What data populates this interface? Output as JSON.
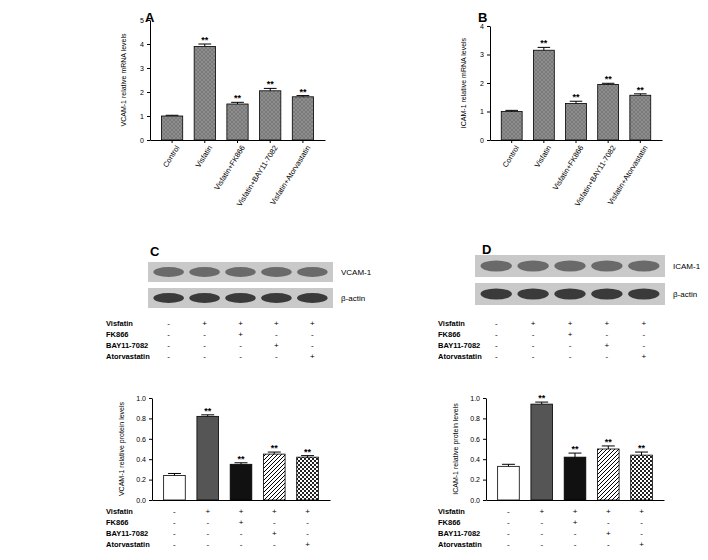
{
  "chart_data": [
    {
      "type": "bar",
      "title": "A",
      "y_label": "VCAM-1 relative  mRNA levels",
      "categories": [
        "Control",
        "Visfatin",
        "Visfatin+FK866",
        "Visfatin+BAY11-7082",
        "Visfatin+Atorvastatin"
      ],
      "values": [
        1.0,
        3.9,
        1.5,
        2.05,
        1.8
      ],
      "errors": [
        0.03,
        0.1,
        0.07,
        0.1,
        0.05
      ],
      "annotations": [
        null,
        "**",
        "**",
        "**",
        "**"
      ],
      "color": "#7a7a7a",
      "ylim": [
        0,
        5
      ],
      "yticks": [
        0,
        1,
        2,
        3,
        4,
        5
      ]
    },
    {
      "type": "bar",
      "title": "B",
      "y_label": "ICAM-1 relative mRNA levels",
      "categories": [
        "Control",
        "Visfatin",
        "Visfatin+FK866",
        "Visfatin+BAY11-7082",
        "Visfatin+Atorvastatin"
      ],
      "values": [
        1.0,
        3.15,
        1.28,
        1.95,
        1.57
      ],
      "errors": [
        0.04,
        0.1,
        0.08,
        0.04,
        0.05
      ],
      "annotations": [
        null,
        "**",
        "**",
        "**",
        "**"
      ],
      "color": "#7a7a7a",
      "ylim": [
        0,
        4
      ],
      "yticks": [
        0,
        1,
        2,
        3,
        4
      ]
    },
    {
      "type": "bar",
      "title": "C",
      "y_label": "VCAM-1 relative  protein levels",
      "blots": [
        "VCAM-1",
        "β-actin"
      ],
      "treatments": [
        {
          "name": "Visfatin",
          "signs": [
            "-",
            "+",
            "+",
            "+",
            "+"
          ]
        },
        {
          "name": "FK866",
          "signs": [
            "-",
            "-",
            "+",
            "-",
            "-"
          ]
        },
        {
          "name": "BAY11-7082",
          "signs": [
            "-",
            "-",
            "-",
            "+",
            "-"
          ]
        },
        {
          "name": "Atorvastatin",
          "signs": [
            "-",
            "-",
            "-",
            "-",
            "+"
          ]
        }
      ],
      "categories": [
        null,
        null,
        null,
        null,
        null
      ],
      "values": [
        0.24,
        0.82,
        0.35,
        0.45,
        0.42
      ],
      "errors": [
        0.02,
        0.015,
        0.015,
        0.02,
        0.015
      ],
      "annotations": [
        null,
        "**",
        "**",
        "**",
        "**"
      ],
      "colors": [
        "#ffffff",
        "#555555",
        "#111111",
        "#ffffff",
        "#222222"
      ],
      "tick_labels": "y",
      "ylim": [
        0,
        1
      ],
      "yticks": [
        {
          "value": 0,
          "label": "0.0"
        },
        0.2,
        0.4,
        0.6,
        0.8,
        {
          "value": 1,
          "label": "1.0"
        }
      ]
    },
    {
      "type": "bar",
      "title": "D",
      "y_label": "ICAM-1 relative protein levels",
      "blots": [
        "ICAM-1",
        "β-actin"
      ],
      "treatments": [
        {
          "name": "Visfatin",
          "signs": [
            "-",
            "+",
            "+",
            "+",
            "+"
          ]
        },
        {
          "name": "FK866",
          "signs": [
            "-",
            "-",
            "+",
            "-",
            "-"
          ]
        },
        {
          "name": "BAY11-7082",
          "signs": [
            "-",
            "-",
            "-",
            "+",
            "-"
          ]
        },
        {
          "name": "Atorvastatin",
          "signs": [
            "-",
            "-",
            "-",
            "-",
            "+"
          ]
        }
      ],
      "categories": [
        null,
        null,
        null,
        null,
        null
      ],
      "values": [
        0.33,
        0.94,
        0.42,
        0.5,
        0.44
      ],
      "errors": [
        0.02,
        0.02,
        0.04,
        0.03,
        0.03
      ],
      "annotations": [
        null,
        "**",
        "**",
        "**",
        "**"
      ],
      "colors": [
        "#ffffff",
        "#555555",
        "#111111",
        "#ffffff",
        "#222222"
      ],
      "tick_labels": "y",
      "ylim": [
        0,
        1
      ],
      "yticks": [
        {
          "value": 0,
          "label": "0.0"
        },
        0.2,
        0.4,
        0.6,
        0.8,
        {
          "value": 1,
          "label": "1.0"
        }
      ]
    }
  ]
}
